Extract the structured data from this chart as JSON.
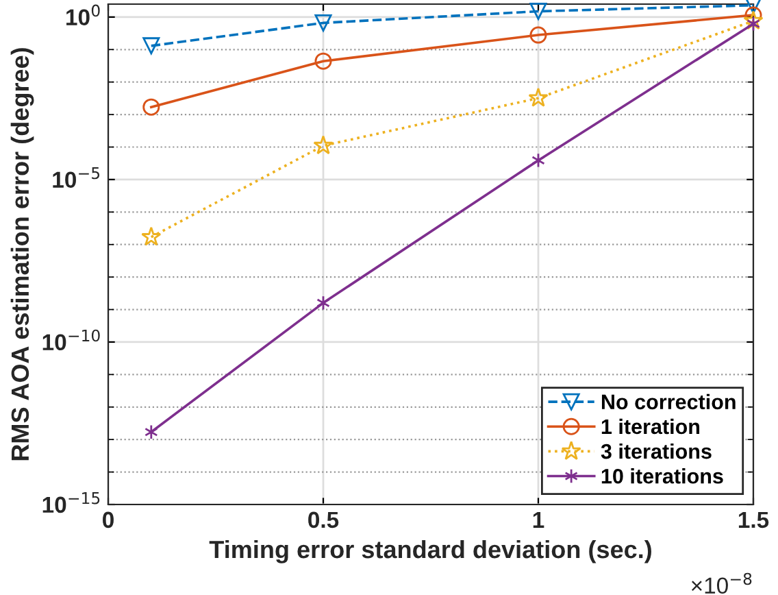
{
  "chart_data": {
    "type": "line",
    "xlabel": "Timing error standard deviation (sec.)",
    "ylabel": "RMS AOA estimation error (degree)",
    "x": [
      0.1,
      0.5,
      1,
      1.5
    ],
    "series": [
      {
        "name": "No correction",
        "color": "#0072bd",
        "marker": "triangle",
        "line_style": "dashed",
        "values": [
          0.13,
          0.66,
          1.5,
          2.3
        ]
      },
      {
        "name": "1 iteration",
        "color": "#d95319",
        "marker": "circle",
        "line_style": "solid",
        "values": [
          0.0017,
          0.044,
          0.28,
          1.15
        ]
      },
      {
        "name": "3 iterations",
        "color": "#edb120",
        "marker": "star",
        "line_style": "dotted",
        "values": [
          1.7e-07,
          0.00011,
          0.0032,
          0.76
        ]
      },
      {
        "name": "10 iterations",
        "color": "#7e2f8e",
        "marker": "cross",
        "line_style": "solid",
        "values": [
          1.7e-13,
          1.6e-09,
          3.9e-05,
          0.62
        ]
      }
    ],
    "log": "y",
    "xlim": [
      0,
      1.5
    ],
    "xticks": [
      0,
      0.5,
      1,
      1.5
    ],
    "ylim": [
      1e-15,
      2.5
    ],
    "yticks": [
      {
        "value": 1e-15,
        "label": "10$^{−15}$"
      },
      {
        "value": 1e-10,
        "label": "10$^{−10}$"
      },
      {
        "value": 1e-05,
        "label": "10$^{−5}$"
      },
      {
        "value": 1,
        "label": "10$^{0}$"
      }
    ],
    "grid": true,
    "legend": "bottom right",
    "annotations": [
      "×10$^{−8}$"
    ]
  }
}
